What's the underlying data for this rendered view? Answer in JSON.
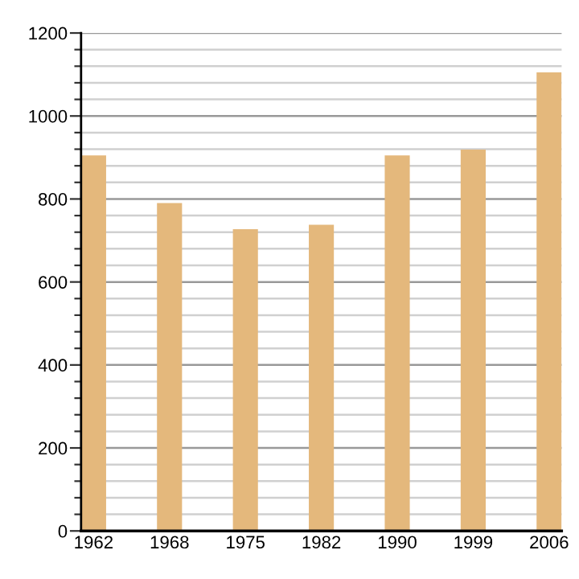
{
  "chart_data": {
    "type": "bar",
    "categories": [
      "1962",
      "1968",
      "1975",
      "1982",
      "1990",
      "1999",
      "2006"
    ],
    "values": [
      905,
      790,
      727,
      738,
      905,
      919,
      1105
    ],
    "color": "#e4b87c",
    "ylim": [
      0,
      1200
    ],
    "yticks": [
      0,
      {
        "value": 40,
        "label": null
      },
      {
        "value": 80,
        "label": null
      },
      {
        "value": 120,
        "label": null
      },
      {
        "value": 160,
        "label": null
      },
      200,
      {
        "value": 240,
        "label": null
      },
      {
        "value": 280,
        "label": null
      },
      {
        "value": 320,
        "label": null
      },
      {
        "value": 360,
        "label": null
      },
      400,
      {
        "value": 440,
        "label": null
      },
      {
        "value": 480,
        "label": null
      },
      {
        "value": 520,
        "label": null
      },
      {
        "value": 560,
        "label": null
      },
      600,
      {
        "value": 640,
        "label": null
      },
      {
        "value": 680,
        "label": null
      },
      {
        "value": 720,
        "label": null
      },
      {
        "value": 760,
        "label": null
      },
      800,
      {
        "value": 840,
        "label": null
      },
      {
        "value": 880,
        "label": null
      },
      {
        "value": 920,
        "label": null
      },
      {
        "value": 960,
        "label": null
      },
      1000,
      {
        "value": 1040,
        "label": null
      },
      {
        "value": 1080,
        "label": null
      },
      {
        "value": 1120,
        "label": null
      },
      {
        "value": 1160,
        "label": null
      },
      1200
    ],
    "grid": "y"
  }
}
